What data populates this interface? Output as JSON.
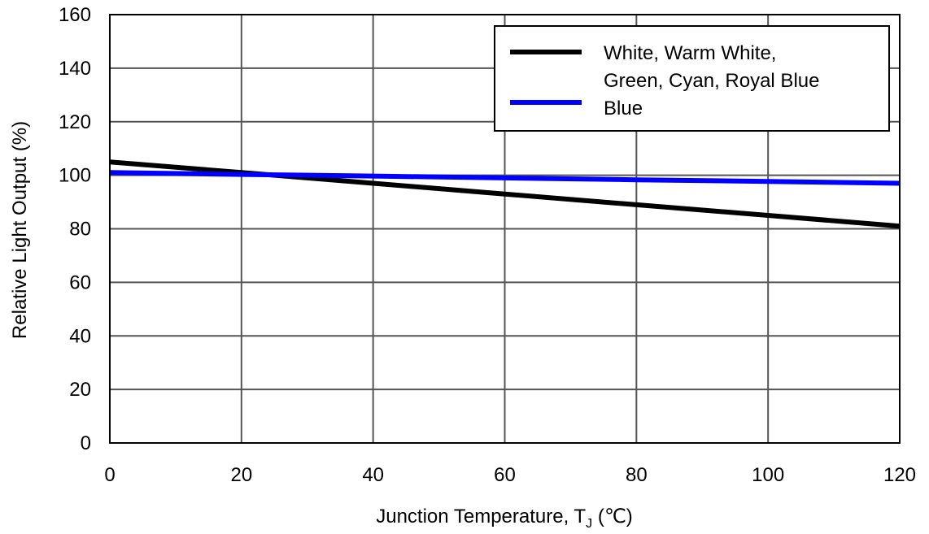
{
  "chart_data": {
    "type": "line",
    "xlabel_main": "Junction Temperature, T",
    "xlabel_sub": "J",
    "xlabel_unit": " (℃)",
    "ylabel": "Relative Light Output (%)",
    "xlim": [
      0,
      120
    ],
    "ylim": [
      0,
      160
    ],
    "xticks": [
      0,
      20,
      40,
      60,
      80,
      100,
      120
    ],
    "yticks": [
      0,
      20,
      40,
      60,
      80,
      100,
      120,
      140,
      160
    ],
    "grid": true,
    "legend_position": "top-right",
    "series": [
      {
        "name_lines": [
          "White, Warm White,",
          "Green, Cyan, Royal Blue"
        ],
        "color": "#000000",
        "x": [
          0,
          20,
          40,
          60,
          80,
          100,
          120
        ],
        "y": [
          105,
          101,
          97,
          93,
          89,
          85,
          81
        ]
      },
      {
        "name_lines": [
          "Blue"
        ],
        "color": "#0000ff",
        "x": [
          0,
          20,
          40,
          60,
          80,
          100,
          120
        ],
        "y": [
          101,
          100.3,
          99.7,
          99,
          98.3,
          97.7,
          97
        ]
      }
    ]
  }
}
